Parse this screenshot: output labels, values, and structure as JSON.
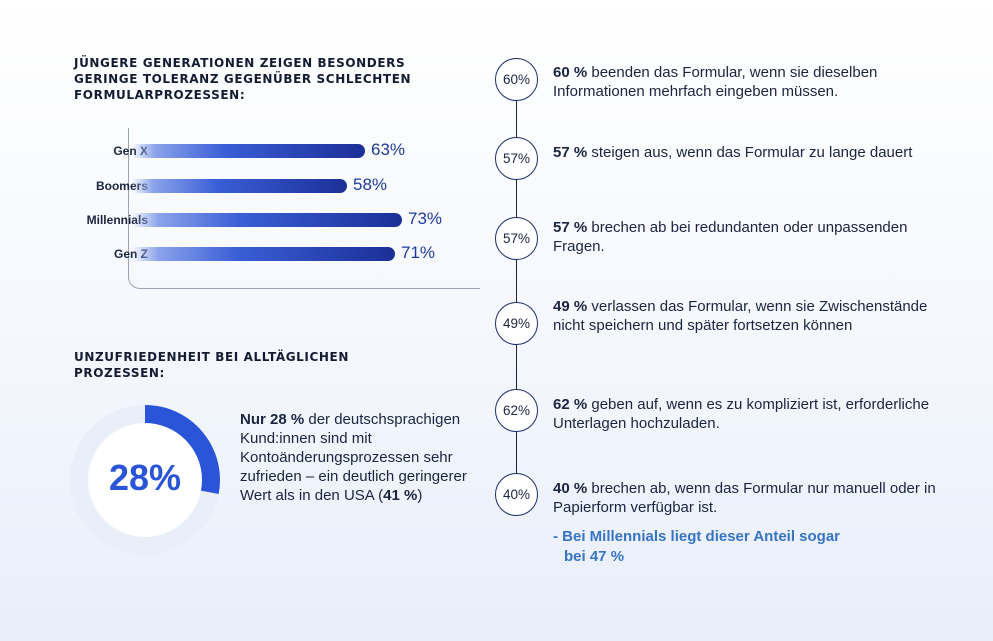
{
  "chart_data": [
    {
      "type": "bar",
      "title": "JÜNGERE GENERATIONEN ZEIGEN BESONDERS GERINGE TOLERANZ GEGENÜBER SCHLECHTEN FORMULARPROZESSEN:",
      "categories": [
        "Gen X",
        "Boomers",
        "Millennials",
        "Gen Z"
      ],
      "values": [
        63,
        58,
        73,
        71
      ],
      "value_labels": [
        "63%",
        "58%",
        "73%",
        "71%"
      ],
      "orientation": "horizontal",
      "xlim": [
        0,
        100
      ],
      "colors": {
        "bar_start": "#8aa3ea",
        "bar_end": "#1b2f97",
        "value_text": "#1f3a9a"
      }
    },
    {
      "type": "pie",
      "title": "UNZUFRIEDENHEIT BEI ALLTÄGLICHEN PROZESSEN:",
      "values": [
        28
      ],
      "center_label": "28%",
      "colors": {
        "slice": "#2a55d8",
        "ring": "#e9eef9",
        "center": "#ffffff"
      }
    }
  ],
  "donut_text": {
    "lead": "Nur 28 %",
    "body": " der deutschsprachigen Kund:innen sind mit Kontoänderungsprozessen sehr zufrieden – ein deutlich geringerer Wert als in den USA (",
    "usa_value": "41 %",
    "tail": ")"
  },
  "timeline": [
    {
      "circle": "60%",
      "bold": "60 %",
      "text": " beenden das Formular, wenn sie dieselben Informationen mehrfach eingeben müssen."
    },
    {
      "circle": "57%",
      "bold": "57 %",
      "text": " steigen aus, wenn das Formular zu lange dauert"
    },
    {
      "circle": "57%",
      "bold": "57 %",
      "text": " brechen ab bei redundanten oder unpassenden Fragen."
    },
    {
      "circle": "49%",
      "bold": "49 %",
      "text": " verlassen das Formular, wenn sie Zwischenstände nicht speichern und später fortsetzen können"
    },
    {
      "circle": "62%",
      "bold": "62 %",
      "text": " geben auf, wenn es zu kompliziert ist, erforderliche Unterlagen hochzuladen."
    },
    {
      "circle": "40%",
      "bold": "40 %",
      "text": " brechen ab, wenn das Formular nur manuell oder in Papierform verfügbar ist."
    }
  ],
  "sub_note": {
    "line1": "- Bei Millennials liegt dieser Anteil sogar",
    "line2_prefix": "bei ",
    "line2_value": "47 %"
  }
}
